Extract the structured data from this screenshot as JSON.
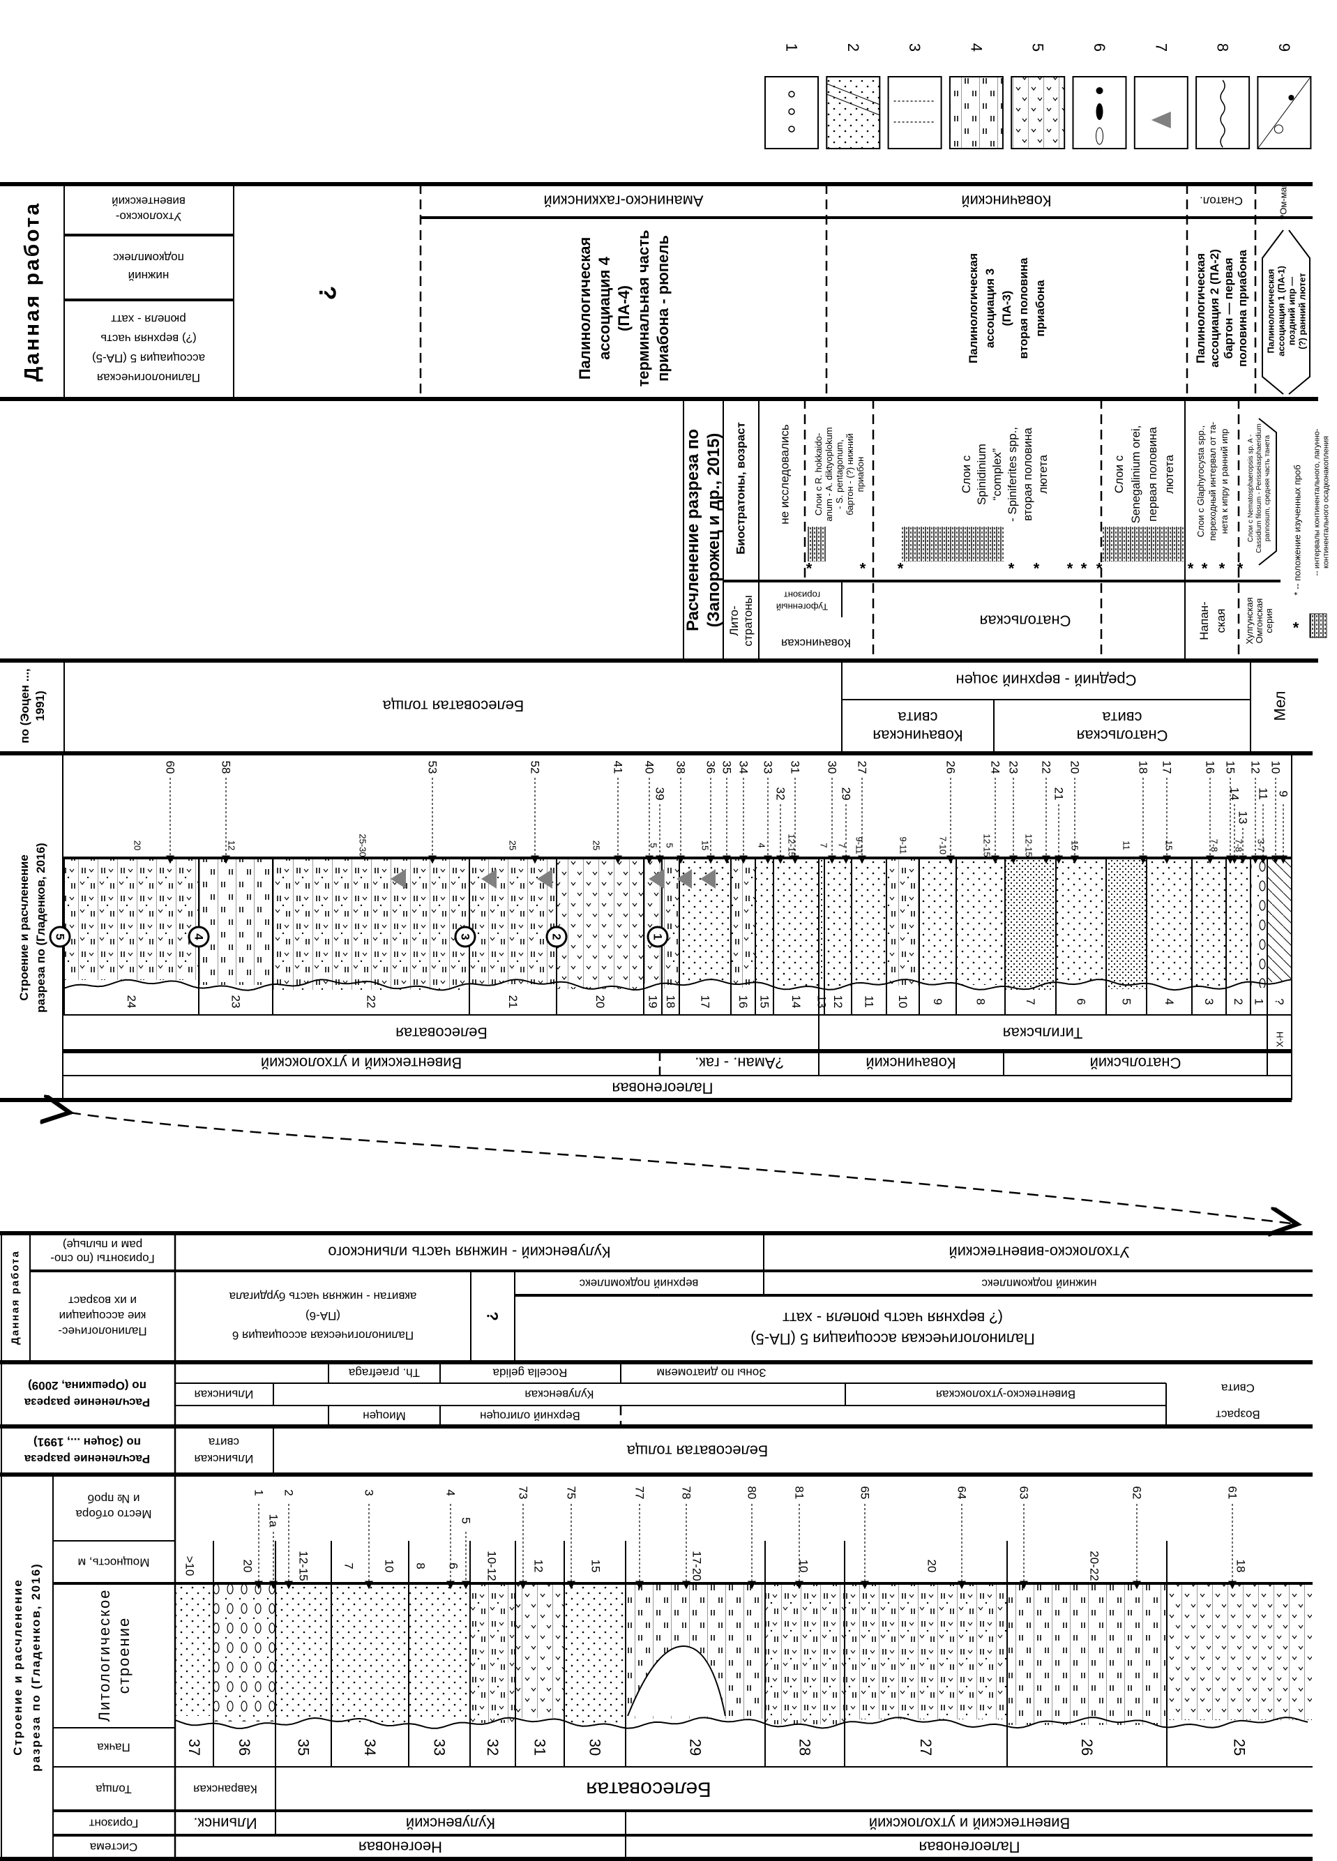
{
  "colors": {
    "ink": "#000000",
    "tuff_triangle": "#808080"
  },
  "legend": {
    "numbers": [
      "1",
      "2",
      "3",
      "4",
      "5",
      "6",
      "7",
      "8",
      "9"
    ],
    "icons": [
      "gravel-icon",
      "cross-bedded-sandstone-icon",
      "siltstone-icon",
      "mudstone-icon",
      "tuffaceous-icon",
      "concretion-icon",
      "tuff-triangle-icon",
      "wavy-contact-icon",
      "plant-fossil-icon"
    ]
  },
  "top": {
    "this_work": {
      "header": "Данная работа",
      "pa5_horizon": [
        "Утхолокско-",
        "вивентекский"
      ],
      "pa5_subcomplex": [
        "нижний",
        "подкомплекс"
      ],
      "pa5": [
        "Палинологическая",
        "ассоциация 5 (ПА-5)",
        "(?) верхняя часть",
        "рюпеля - хатт"
      ],
      "unknown": "?",
      "horizons": {
        "aman": "Аманинско-гахкинский",
        "kovach": "Ковачинский",
        "snatol": "Снатол.",
        "om": "?Ом-май"
      },
      "pa4": [
        "Палинологическая",
        "ассоциация 4",
        "(ПА-4)",
        "терминальная часть",
        "приабона - рюпель"
      ],
      "pa3": [
        "Палинологическая",
        "ассоциация 3",
        "(ПА-3)",
        "вторая половина",
        "приабона"
      ],
      "pa2": [
        "Палинологическая",
        "ассоциация 2 (ПА-2)",
        "бартон — первая",
        "половина приабона"
      ],
      "pa1": [
        "Палинологическая",
        "ассоциация 1 (ПА-1)",
        "поздний ипр —",
        "(?) ранний лютет"
      ]
    },
    "zaporozhets": {
      "header": [
        "Расчленение разреза по",
        "(Запорожец и др., 2015)"
      ],
      "bio_label": "Биостратоны, возраст",
      "litho_label": [
        "Лито-",
        "стратоны"
      ],
      "not_studied": "не исследовались",
      "zone_hokkaidoanum": [
        "Слои с R. hokkaido-",
        "anum - A. diktyoplokum",
        "- S. pentagonum,",
        "бартон - (?) нижний",
        "приабон"
      ],
      "zone_spinidinium": [
        "Слои с",
        "Spinidinium",
        "“complex”",
        "- Spiniferites spp.,",
        "вторая половина",
        "лютета"
      ],
      "zone_senegalinium": [
        "Слои с",
        "Senegalinium orei,",
        "первая половина",
        "лютета"
      ],
      "zone_glaphyrocysta": [
        "Слои с Glaphyrocysta spp.,",
        "переходный интервал от та-",
        "нета к ипру и ранний ипр"
      ],
      "zone_nematosphaeropsis": [
        "Слои с Nematosphaeropsis sp. A -",
        "Cassidium filosum - Perisseiasphaeridium",
        "pannosum, средняя часть танета"
      ],
      "litho_kovach": "Ковачинская",
      "litho_tuff": [
        "Туфогенный",
        "горизонт"
      ],
      "litho_snatol": "Снатольская",
      "litho_napan": [
        "Напан-",
        "ская"
      ],
      "litho_omgon": [
        "Хулгунская",
        "Омгонская",
        "серия"
      ],
      "sample_mark": "*",
      "note_samples": "* -- положение изученных проб",
      "note_continental": [
        "-- интервалы континентального, лагунно-",
        "континентального осадконакопления"
      ]
    },
    "zotsen": {
      "header": [
        "по (Эоцен ...,",
        "1991)"
      ],
      "belesovataya": "Белесоватая толща",
      "age": "Средний - верхний эоцен",
      "kovach": [
        "Ковачинская",
        "свита"
      ],
      "snatol": [
        "Снатольская",
        "свита"
      ],
      "mel": "Мел"
    },
    "gladenkov": {
      "header": [
        "Строение и расчленение",
        "разреза по (Гладенков, 2016)"
      ],
      "system": "Палеогеновая",
      "horizons": [
        "Вивентекский и утхолокский",
        "?Аман. - гак.",
        "Ковачинский",
        "Снатольский"
      ],
      "tolshcha": [
        "Белесоватая",
        "Тигильская",
        "Х-Н"
      ],
      "beds": [
        "24",
        "23",
        "22",
        "21",
        "20",
        "19",
        "18",
        "17",
        "16",
        "15",
        "14",
        "13",
        "12",
        "11",
        "10",
        "9",
        "8",
        "7",
        "6",
        "5",
        "4",
        "3",
        "2",
        "1",
        "?"
      ],
      "samples": [
        "60",
        "58",
        "53",
        "52",
        "41",
        "40",
        "39",
        "38",
        "36",
        "35",
        "34",
        "33",
        "32",
        "31",
        "30",
        "29",
        "27",
        "26",
        "24",
        "23",
        "22",
        "21",
        "20",
        "18",
        "17",
        "16",
        "15",
        "14",
        "13",
        "12",
        "11",
        "10",
        "9"
      ],
      "thickness": [
        "20",
        "12",
        "25-30",
        "25",
        "25",
        "5",
        "5",
        "15",
        "4",
        "12-15",
        "7",
        "7",
        "9-11",
        "9-11",
        "7-10",
        "12-15",
        "12-15",
        "15",
        "11",
        "15",
        "7-8",
        "7-8",
        "3-7"
      ],
      "tuff_units": [
        "5",
        "4",
        "3",
        "2",
        "1"
      ]
    }
  },
  "bottom": {
    "this_work": {
      "header": "Данная работа",
      "label_horizons": [
        "Горизонты (по спо-",
        "рам и пыльце)"
      ],
      "label_assoc": [
        "Палинологичес-",
        "кие ассоциации",
        "и их возраст"
      ],
      "horizon_kuluv": "Кулувенский - нижняя часть ильинского",
      "horizon_utkh": "Утхолокско-вивентекский",
      "pa6": [
        "Палинологическая ассоциация 6",
        "(ПА-6)",
        "аквитан - нижняя часть бурдигала"
      ],
      "unknown": "?",
      "upper_subcomplex": "верхний подкомплекс",
      "lower_subcomplex": "нижний подкомплекс",
      "pa5": [
        "Палинологическая ассоциация 5  (ПА-5)",
        "(? верхняя часть рюпеля  - хатт"
      ]
    },
    "oreshkina": {
      "header": [
        "Расчленение разреза",
        "по (Орешкина, 2009)"
      ],
      "diatom_label": "Зоны по диатомеям",
      "zones": [
        "Th. praefraga",
        "Rocella gelida"
      ],
      "suites": [
        "Ильинская",
        "Кулувенская",
        "Вивентекско-утхолокская"
      ],
      "ages": [
        "Миоцен",
        "Верхний олигоцен"
      ],
      "label_suite": "Свита",
      "label_age": "Возраст"
    },
    "zotsen": {
      "header": [
        "Расчленение разреза",
        "по (Зоцен ..., 1991)"
      ],
      "ilyinsk": [
        "Ильинская",
        "свита"
      ],
      "belesovataya": "Белесоватая толща"
    },
    "gladenkov": {
      "header": [
        "Строение и расчленение",
        "разреза по (Гладенков, 2016)"
      ],
      "col_samples": [
        "Место отбора",
        "и № проб"
      ],
      "col_thickness": "Мощность, м",
      "col_litho": [
        "Литологическое",
        "строение"
      ],
      "col_pachka": "Пачка",
      "col_tolshcha": "Толща",
      "col_horizon": "Горизонт",
      "col_system": "Система",
      "systems": [
        "Неогеновая",
        "Палеогеновая"
      ],
      "horizons": [
        "Ильинск.",
        "Кулувенский",
        "Вивентекский и утхолокский"
      ],
      "tolshcha": [
        "Кавранская",
        "Белесоватая"
      ],
      "beds": [
        "37",
        "36",
        "35",
        "34",
        "33",
        "32",
        "31",
        "30",
        "29",
        "28",
        "27",
        "26",
        "25"
      ],
      "samples": [
        "1",
        "1a",
        "2",
        "3",
        "4",
        "5",
        "73",
        "75",
        "77",
        "78",
        "80",
        "81",
        "65",
        "64",
        "63",
        "62",
        "61"
      ],
      "thickness": [
        ">10",
        "20",
        "12-15",
        "7",
        "10",
        "8",
        "6",
        "10-12",
        "12",
        "15",
        "17-20",
        "10",
        "20",
        "20-22",
        "18"
      ]
    }
  }
}
